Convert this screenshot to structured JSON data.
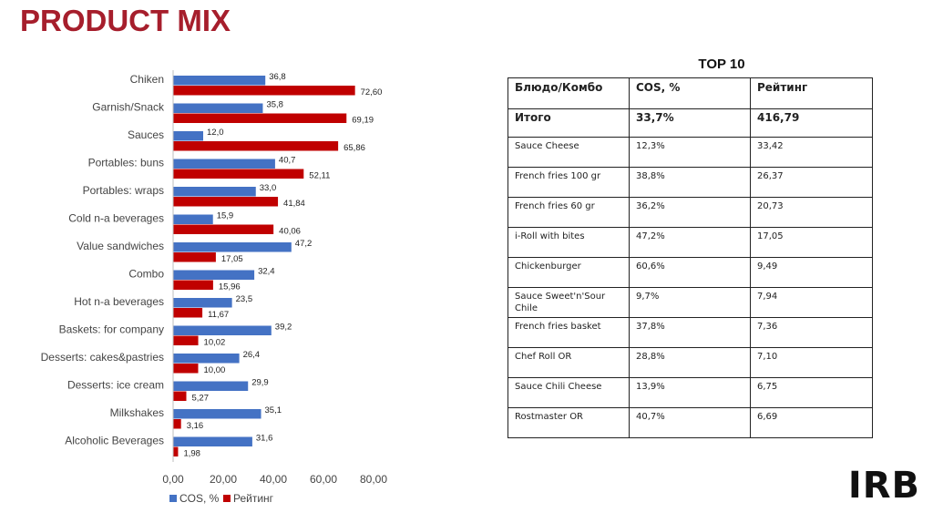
{
  "page": {
    "title": "PRODUCT MIX",
    "logo": "IRB"
  },
  "colors": {
    "title": "#a61e2c",
    "cos": "#4472c4",
    "rating": "#c00000"
  },
  "chart_data": {
    "type": "bar",
    "orientation": "horizontal",
    "title": "",
    "categories": [
      "Chiken",
      "Garnish/Snack",
      "Sauces",
      "Portables: buns",
      "Portables: wraps",
      "Cold n-a beverages",
      "Value sandwiches",
      "Combo",
      "Hot n-a beverages",
      "Baskets: for company",
      "Desserts: cakes&pastries",
      "Desserts: ice cream",
      "Milkshakes",
      "Alcoholic Beverages"
    ],
    "series": [
      {
        "name": "COS, %",
        "values": [
          36.8,
          35.8,
          12.0,
          40.7,
          33.0,
          15.9,
          47.2,
          32.4,
          23.5,
          39.2,
          26.4,
          29.9,
          35.1,
          31.6
        ],
        "labels": [
          "36,8",
          "35,8",
          "12,0",
          "40,7",
          "33,0",
          "15,9",
          "47,2",
          "32,4",
          "23,5",
          "39,2",
          "26,4",
          "29,9",
          "35,1",
          "31,6"
        ]
      },
      {
        "name": "Рейтинг",
        "values": [
          72.6,
          69.19,
          65.86,
          52.11,
          41.84,
          40.06,
          17.05,
          15.96,
          11.67,
          10.02,
          10.0,
          5.27,
          3.16,
          1.98
        ],
        "labels": [
          "72,60",
          "69,19",
          "65,86",
          "52,11",
          "41,84",
          "40,06",
          "17,05",
          "15,96",
          "11,67",
          "10,02",
          "10,00",
          "5,27",
          "3,16",
          "1,98"
        ]
      }
    ],
    "xlim": [
      0,
      80
    ],
    "xticks": [
      0,
      20,
      40,
      60,
      80
    ],
    "xtick_labels": [
      "0,00",
      "20,00",
      "40,00",
      "60,00",
      "80,00"
    ],
    "grid": false,
    "legend": "bottom"
  },
  "table": {
    "title": "TOP 10",
    "headers": [
      "Блюдо/Комбо",
      "COS, %",
      "Рейтинг"
    ],
    "total": [
      "Итого",
      "33,7%",
      "416,79"
    ],
    "rows": [
      [
        "Sauce Cheese",
        "12,3%",
        "33,42"
      ],
      [
        "French fries 100 gr",
        "38,8%",
        "26,37"
      ],
      [
        "French fries 60 gr",
        "36,2%",
        "20,73"
      ],
      [
        "i-Roll with bites",
        "47,2%",
        "17,05"
      ],
      [
        "Chickenburger",
        "60,6%",
        "9,49"
      ],
      [
        "Sauce Sweet'n'Sour Chile",
        "9,7%",
        "7,94"
      ],
      [
        "French fries basket",
        "37,8%",
        "7,36"
      ],
      [
        "Chef Roll OR",
        "28,8%",
        "7,10"
      ],
      [
        "Sauce Chili Cheese",
        "13,9%",
        "6,75"
      ],
      [
        "Rostmaster OR",
        "40,7%",
        "6,69"
      ]
    ]
  }
}
